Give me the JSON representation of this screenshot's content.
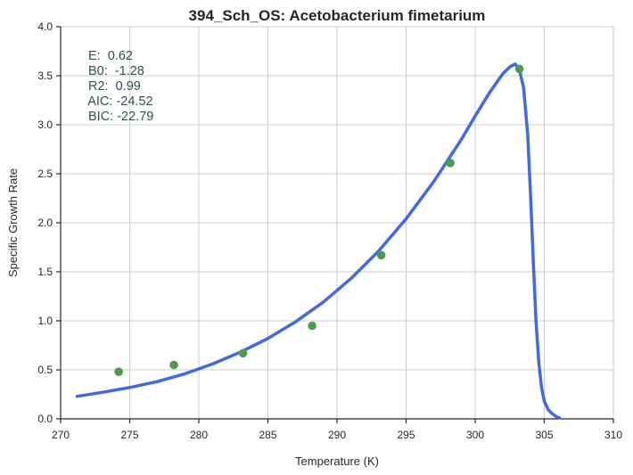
{
  "chart_data": {
    "type": "scatter",
    "title": "394_Sch_OS: Acetobacterium fimetarium",
    "xlabel": "Temperature (K)",
    "ylabel": "Specific Growth Rate",
    "xlim": [
      270,
      310
    ],
    "ylim": [
      0.0,
      4.0
    ],
    "x_ticks": [
      "270",
      "275",
      "280",
      "285",
      "290",
      "295",
      "300",
      "305",
      "310"
    ],
    "y_ticks": [
      "0.0",
      "0.5",
      "1.0",
      "1.5",
      "2.0",
      "2.5",
      "3.0",
      "3.5",
      "4.0"
    ],
    "grid": true,
    "colors": {
      "points": "#4c9c4c",
      "fit": "#4169e1"
    },
    "series": [
      {
        "kind": "points",
        "x": [
          274.2,
          278.2,
          283.2,
          288.2,
          293.2,
          298.2,
          303.2
        ],
        "y": [
          0.48,
          0.55,
          0.67,
          0.95,
          1.67,
          2.61,
          3.57
        ]
      },
      {
        "kind": "fit-line",
        "x": [
          271.2,
          273,
          275,
          277,
          279,
          281,
          283,
          285,
          287,
          289,
          291,
          293,
          295,
          297,
          299,
          300,
          301,
          302,
          302.5,
          302.9,
          303.2,
          303.5,
          303.8,
          304.0,
          304.2,
          304.4,
          304.6,
          304.8,
          305.0,
          305.3,
          305.6,
          305.9,
          306.1
        ],
        "y": [
          0.23,
          0.27,
          0.32,
          0.38,
          0.46,
          0.56,
          0.68,
          0.82,
          0.99,
          1.19,
          1.43,
          1.71,
          2.04,
          2.42,
          2.85,
          3.09,
          3.32,
          3.52,
          3.59,
          3.62,
          3.56,
          3.38,
          2.9,
          2.3,
          1.62,
          1.0,
          0.58,
          0.32,
          0.18,
          0.09,
          0.05,
          0.02,
          0.01
        ]
      }
    ],
    "annotations": [
      "E:  0.62",
      "B0:  -1.28",
      "R2:  0.99",
      " AIC: -24.52",
      "BIC: -22.79"
    ]
  }
}
